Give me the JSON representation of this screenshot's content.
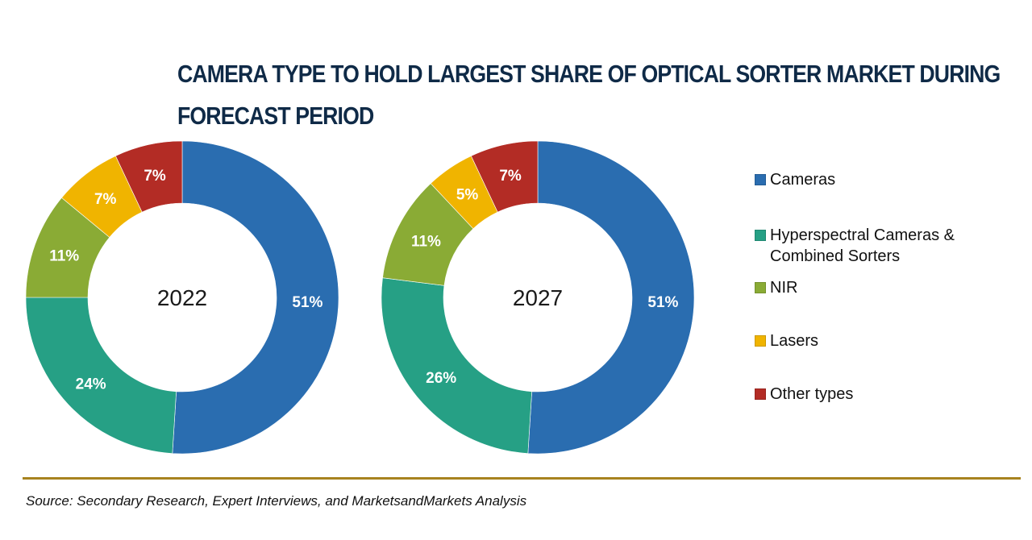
{
  "chart_data": {
    "type": "pie",
    "variant": "donut",
    "title": "CAMERA TYPE TO HOLD LARGEST SHARE OF OPTICAL SORTER MARKET DURING FORECAST PERIOD",
    "categories": [
      "Cameras",
      "Hyperspectral Cameras & Combined Sorters",
      "NIR",
      "Lasers",
      "Other types"
    ],
    "colors": [
      "#2a6db0",
      "#26a085",
      "#8aab35",
      "#f0b400",
      "#b32c25"
    ],
    "charts": [
      {
        "label": "2022",
        "values": [
          51,
          24,
          11,
          7,
          7
        ],
        "labels": [
          "51%",
          "24%",
          "11%",
          "7%",
          "7%"
        ]
      },
      {
        "label": "2027",
        "values": [
          51,
          26,
          11,
          5,
          7
        ],
        "labels": [
          "51%",
          "26%",
          "11%",
          "5%",
          "7%"
        ]
      }
    ],
    "legend": {
      "position": "right",
      "items": [
        {
          "line1": "Cameras",
          "line2": ""
        },
        {
          "line1": "Hyperspectral Cameras &",
          "line2": "Combined Sorters"
        },
        {
          "line1": "NIR",
          "line2": ""
        },
        {
          "line1": "Lasers",
          "line2": ""
        },
        {
          "line1": "Other types",
          "line2": ""
        }
      ]
    },
    "source": "Source: Secondary Research, Expert Interviews, and MarketsandMarkets Analysis"
  },
  "title_lines": [
    "CAMERA TYPE TO HOLD LARGEST SHARE OF OPTICAL SORTER MARKET DURING",
    "FORECAST PERIOD"
  ],
  "accent_rule_color": "#a7831f"
}
